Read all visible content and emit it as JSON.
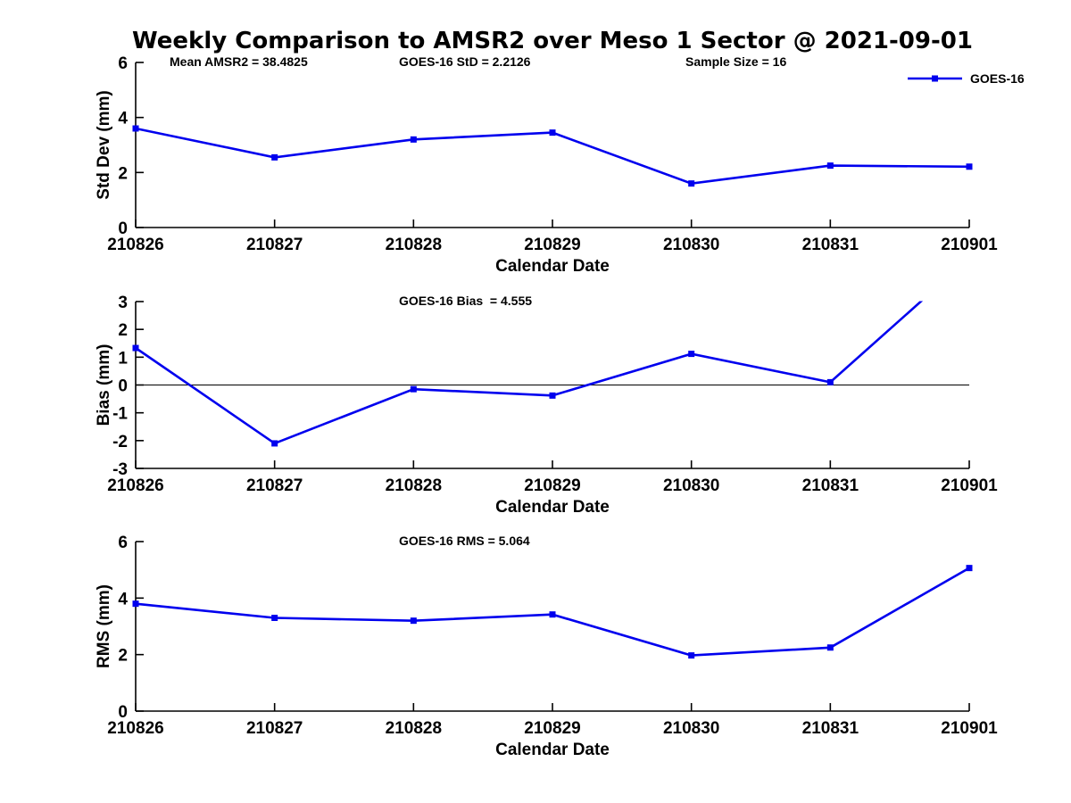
{
  "title": "Weekly Comparison to AMSR2 over Meso 1 Sector @ 2021-09-01",
  "colors": {
    "line": "#0000EE",
    "axis": "#000000",
    "text": "#000000",
    "background": "#FFFFFF"
  },
  "chart_data": [
    {
      "id": "std-dev",
      "type": "line",
      "ylabel": "Std Dev (mm)",
      "xlabel": "Calendar Date",
      "ylim": [
        0,
        6
      ],
      "yticks": [
        0,
        2,
        4,
        6
      ],
      "categories": [
        "210826",
        "210827",
        "210828",
        "210829",
        "210830",
        "210831",
        "210901"
      ],
      "series": [
        {
          "name": "GOES-16",
          "marker": "square",
          "values": [
            3.6,
            2.55,
            3.2,
            3.45,
            1.6,
            2.25,
            2.2126
          ]
        }
      ],
      "annotations": [
        {
          "text": "Mean AMSR2 = 38.4825"
        },
        {
          "text": "GOES-16 StD = 2.2126"
        },
        {
          "text": "Sample Size = 16"
        }
      ],
      "legend": {
        "entries": [
          "GOES-16"
        ],
        "position": "top-right",
        "border": false
      },
      "grid": false,
      "zero_line": false
    },
    {
      "id": "bias",
      "type": "line",
      "ylabel": "Bias (mm)",
      "xlabel": "Calendar Date",
      "ylim": [
        -3,
        3
      ],
      "yticks": [
        -3,
        -2,
        -1,
        0,
        1,
        2,
        3
      ],
      "categories": [
        "210826",
        "210827",
        "210828",
        "210829",
        "210830",
        "210831",
        "210901"
      ],
      "series": [
        {
          "name": "GOES-16",
          "marker": "square",
          "values": [
            1.33,
            -2.1,
            -0.15,
            -0.38,
            1.12,
            0.1,
            4.555
          ]
        }
      ],
      "annotations": [
        {
          "text": "GOES-16 Bias  = 4.555"
        }
      ],
      "grid": false,
      "zero_line": true
    },
    {
      "id": "rms",
      "type": "line",
      "ylabel": "RMS (mm)",
      "xlabel": "Calendar Date",
      "ylim": [
        0,
        6
      ],
      "yticks": [
        0,
        2,
        4,
        6
      ],
      "categories": [
        "210826",
        "210827",
        "210828",
        "210829",
        "210830",
        "210831",
        "210901"
      ],
      "series": [
        {
          "name": "GOES-16",
          "marker": "square",
          "values": [
            3.8,
            3.3,
            3.2,
            3.42,
            1.97,
            2.25,
            5.064
          ]
        }
      ],
      "annotations": [
        {
          "text": "GOES-16 RMS = 5.064"
        }
      ],
      "grid": false,
      "zero_line": false
    }
  ]
}
